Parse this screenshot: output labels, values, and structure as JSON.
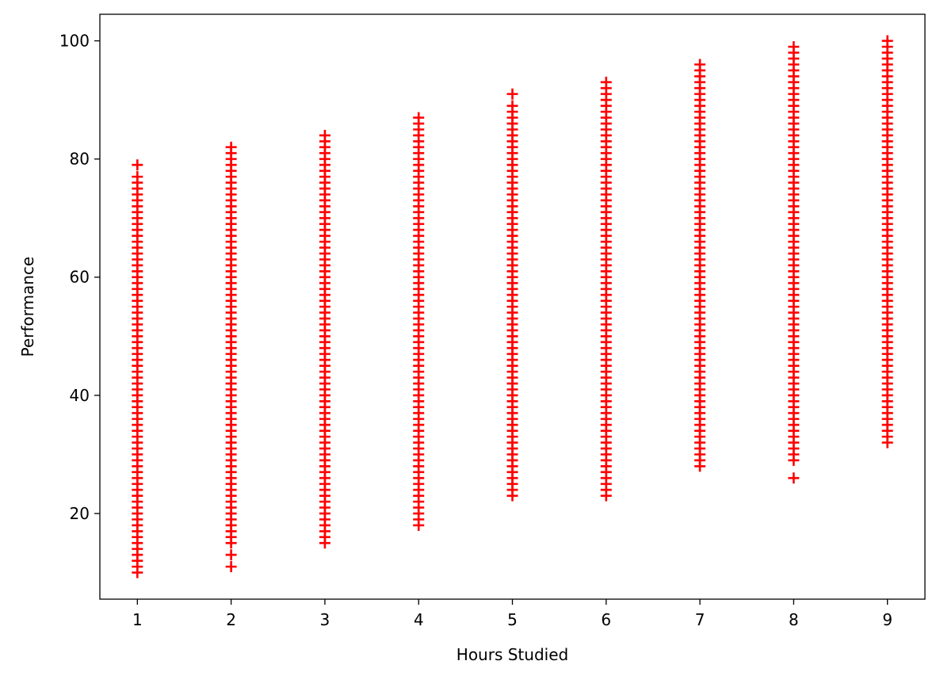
{
  "chart_data": {
    "type": "scatter",
    "title": "",
    "xlabel": "Hours Studied",
    "ylabel": "Performance",
    "xlim": [
      0.6,
      9.4
    ],
    "ylim": [
      5.5,
      104.5
    ],
    "x_ticks": [
      1,
      2,
      3,
      4,
      5,
      6,
      7,
      8,
      9
    ],
    "y_ticks": [
      20,
      40,
      60,
      80,
      100
    ],
    "grid": false,
    "legend": "none",
    "marker": "plus",
    "marker_color": "#ff0000",
    "groups": [
      {
        "x": 1,
        "y_min": 10,
        "y_max": 77,
        "step": 1,
        "extra": [
          79
        ]
      },
      {
        "x": 2,
        "y_min": 15,
        "y_max": 82,
        "step": 1,
        "extra": [
          11,
          13
        ]
      },
      {
        "x": 3,
        "y_min": 15,
        "y_max": 84,
        "step": 1,
        "extra": []
      },
      {
        "x": 4,
        "y_min": 18,
        "y_max": 87,
        "step": 1,
        "extra": []
      },
      {
        "x": 5,
        "y_min": 23,
        "y_max": 89,
        "step": 1,
        "extra": [
          91
        ]
      },
      {
        "x": 6,
        "y_min": 23,
        "y_max": 93,
        "step": 1,
        "extra": []
      },
      {
        "x": 7,
        "y_min": 28,
        "y_max": 96,
        "step": 1,
        "extra": []
      },
      {
        "x": 8,
        "y_min": 29,
        "y_max": 99,
        "step": 1,
        "extra": [
          26
        ]
      },
      {
        "x": 9,
        "y_min": 32,
        "y_max": 100,
        "step": 1,
        "extra": []
      }
    ]
  }
}
